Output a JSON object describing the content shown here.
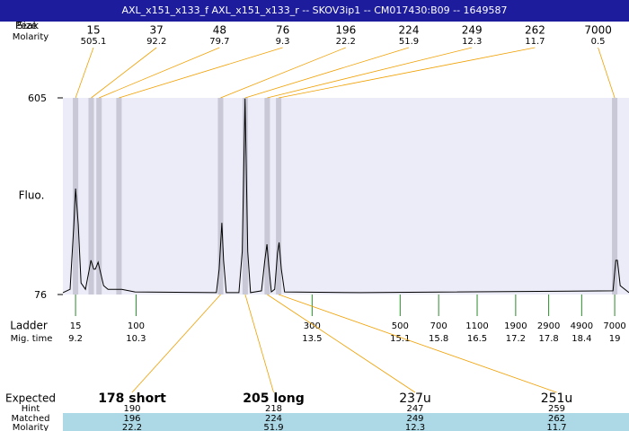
{
  "chart_data": {
    "type": "electropherogram",
    "title": "AXL_x151_x133_f  AXL_x151_x133_r -- SKOV3ip1 -- CM017430:B09 -- 1649587",
    "ylabel": "Fluo.",
    "ylim": [
      76,
      605
    ],
    "yticks": [
      76,
      605
    ],
    "xlim": [
      8.97,
      19.26
    ],
    "color": "#000000",
    "x": [
      8.97,
      9.1,
      9.17,
      9.2,
      9.25,
      9.3,
      9.38,
      9.45,
      9.48,
      9.53,
      9.56,
      9.61,
      9.64,
      9.71,
      9.79,
      10.04,
      10.28,
      11.76,
      11.81,
      11.86,
      11.89,
      11.94,
      12.17,
      12.23,
      12.28,
      12.33,
      12.38,
      12.58,
      12.64,
      12.68,
      12.71,
      12.76,
      12.82,
      12.87,
      12.9,
      12.94,
      13.0,
      14.38,
      18.97,
      19.02,
      19.05,
      19.1,
      19.26
    ],
    "values": [
      81,
      90,
      264,
      361,
      264,
      107,
      90,
      144,
      168,
      144,
      144,
      163,
      144,
      100,
      90,
      90,
      83,
      81,
      144,
      269,
      168,
      81,
      81,
      192,
      603,
      192,
      81,
      86,
      168,
      211,
      156,
      83,
      90,
      187,
      216,
      144,
      83,
      81,
      86,
      168,
      168,
      100,
      81
    ],
    "peaks": {
      "row_labels": [
        "Peak",
        "Size",
        "Molarity"
      ],
      "sizes": [
        15,
        37,
        48,
        76,
        196,
        224,
        249,
        262,
        7000
      ],
      "molarity": [
        505.1,
        92.2,
        79.7,
        9.3,
        22.2,
        51.9,
        12.3,
        11.7,
        0.5
      ]
    },
    "ladder": {
      "row_labels": [
        "Ladder",
        "Mig. time"
      ],
      "sizes": [
        15,
        100,
        300,
        500,
        700,
        1100,
        1900,
        2900,
        4900,
        7000
      ],
      "mig_times": [
        9.2,
        10.3,
        13.5,
        15.1,
        15.8,
        16.5,
        17.2,
        17.8,
        18.4,
        19
      ]
    },
    "expected": {
      "row_labels": [
        "Expected",
        "Hint",
        "Matched",
        "Molarity"
      ],
      "names": [
        "178 short",
        "205 long",
        "237u",
        "251u"
      ],
      "hint": [
        190,
        218,
        247,
        259
      ],
      "matched": [
        196,
        224,
        249,
        262
      ],
      "molarity": [
        22.2,
        51.9,
        12.3,
        11.7
      ]
    }
  }
}
